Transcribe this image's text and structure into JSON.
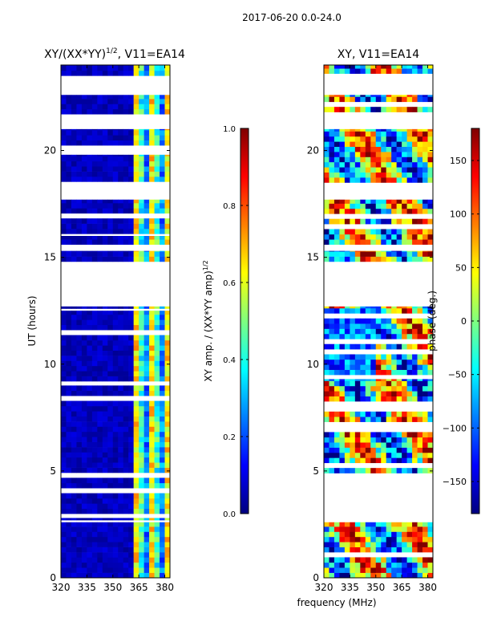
{
  "suptitle": "2017-06-20 0.0-24.0",
  "colors": {
    "jet": [
      "#00007f",
      "#0000ff",
      "#007fff",
      "#00ffff",
      "#7fff7f",
      "#ffff00",
      "#ff7f00",
      "#ff0000",
      "#7f0000"
    ],
    "background": "#ffffff",
    "nodata": "#ffffff"
  },
  "chart_data": [
    {
      "type": "heatmap",
      "title_main": "XY/(XX*YY)",
      "title_exp": "1/2",
      "title_rest": ", V11=EA14",
      "xlabel": "",
      "ylabel": "UT (hours)",
      "xlim": [
        320,
        383
      ],
      "ylim": [
        0,
        24
      ],
      "xticks": [
        320,
        335,
        350,
        365,
        380
      ],
      "yticks": [
        0,
        5,
        10,
        15,
        20
      ],
      "time_segments": [
        [
          0,
          2.6
        ],
        [
          2.7,
          2.8
        ],
        [
          3.0,
          9.0
        ],
        [
          9.2,
          12.5
        ],
        [
          12.6,
          12.7
        ],
        [
          14.8,
          15.3
        ],
        [
          15.6,
          16.0
        ],
        [
          16.1,
          17.7
        ],
        [
          18.3,
          19.8
        ],
        [
          20.0,
          21.0
        ],
        [
          21.7,
          22.6
        ],
        [
          23.5,
          24.0
        ]
      ],
      "quantity": "XY amplitude normalized",
      "colorbar": {
        "label_main": "XY amp. / (XX*YY amp)",
        "label_exp": "1/2",
        "range": [
          0.0,
          1.0
        ],
        "ticks": [
          "0.0",
          "0.2",
          "0.4",
          "0.6",
          "0.8",
          "1.0"
        ],
        "tick_values": [
          0.0,
          0.2,
          0.4,
          0.6,
          0.8,
          1.0
        ]
      }
    },
    {
      "type": "heatmap",
      "title_main": "XY, V11=EA14",
      "xlabel": "frequency (MHz)",
      "ylabel": "",
      "xlim": [
        320,
        383
      ],
      "ylim": [
        0,
        24
      ],
      "xticks": [
        320,
        335,
        350,
        365,
        380
      ],
      "yticks": [
        0,
        5,
        10,
        15,
        20
      ],
      "time_segments": [
        [
          0,
          2.6
        ],
        [
          2.7,
          2.8
        ],
        [
          4.9,
          9.3
        ],
        [
          9.5,
          12.7
        ],
        [
          14.8,
          15.3
        ],
        [
          15.6,
          17.7
        ],
        [
          18.5,
          21.0
        ],
        [
          21.8,
          22.6
        ],
        [
          23.6,
          24.0
        ]
      ],
      "quantity": "XY phase",
      "colorbar": {
        "label": "phase (deg.)",
        "range": [
          -180,
          180
        ],
        "ticks": [
          "−150",
          "−100",
          "−50",
          "0",
          "50",
          "100",
          "150"
        ],
        "tick_values": [
          -150,
          -100,
          -50,
          0,
          50,
          100,
          150
        ]
      }
    }
  ]
}
